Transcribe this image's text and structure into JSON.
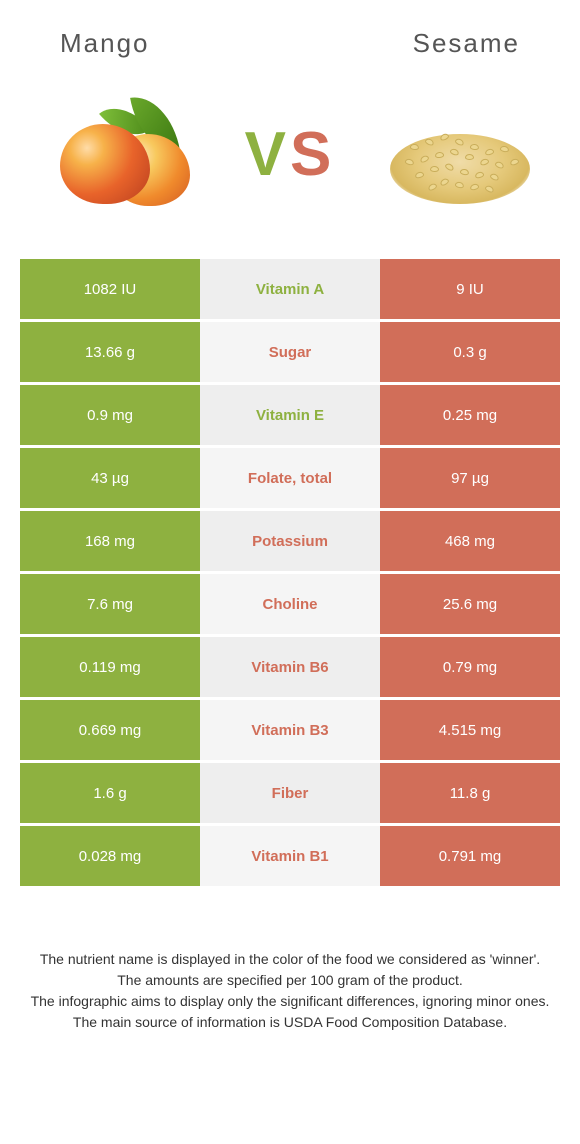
{
  "left_food": "Mango",
  "right_food": "Sesame",
  "vs_text": "VS",
  "colors": {
    "mango": "#8eb140",
    "sesame": "#d16e59",
    "row_light": "#f5f5f5",
    "row_dark": "#eeeeee",
    "vs_v": "#8eb140",
    "vs_s": "#d16e59"
  },
  "rows": [
    {
      "left": "1082 IU",
      "label": "Vitamin A",
      "right": "9 IU",
      "winner": "mango"
    },
    {
      "left": "13.66 g",
      "label": "Sugar",
      "right": "0.3 g",
      "winner": "sesame"
    },
    {
      "left": "0.9 mg",
      "label": "Vitamin E",
      "right": "0.25 mg",
      "winner": "mango"
    },
    {
      "left": "43 µg",
      "label": "Folate, total",
      "right": "97 µg",
      "winner": "sesame"
    },
    {
      "left": "168 mg",
      "label": "Potassium",
      "right": "468 mg",
      "winner": "sesame"
    },
    {
      "left": "7.6 mg",
      "label": "Choline",
      "right": "25.6 mg",
      "winner": "sesame"
    },
    {
      "left": "0.119 mg",
      "label": "Vitamin B6",
      "right": "0.79 mg",
      "winner": "sesame"
    },
    {
      "left": "0.669 mg",
      "label": "Vitamin B3",
      "right": "4.515 mg",
      "winner": "sesame"
    },
    {
      "left": "1.6 g",
      "label": "Fiber",
      "right": "11.8 g",
      "winner": "sesame"
    },
    {
      "left": "0.028 mg",
      "label": "Vitamin B1",
      "right": "0.791 mg",
      "winner": "sesame"
    }
  ],
  "footnote_lines": [
    "The nutrient name is displayed in the color of the food we considered as 'winner'.",
    "The amounts are specified per 100 gram of the product.",
    "The infographic aims to display only the significant differences, ignoring minor ones.",
    "The main source of information is USDA Food Composition Database."
  ]
}
